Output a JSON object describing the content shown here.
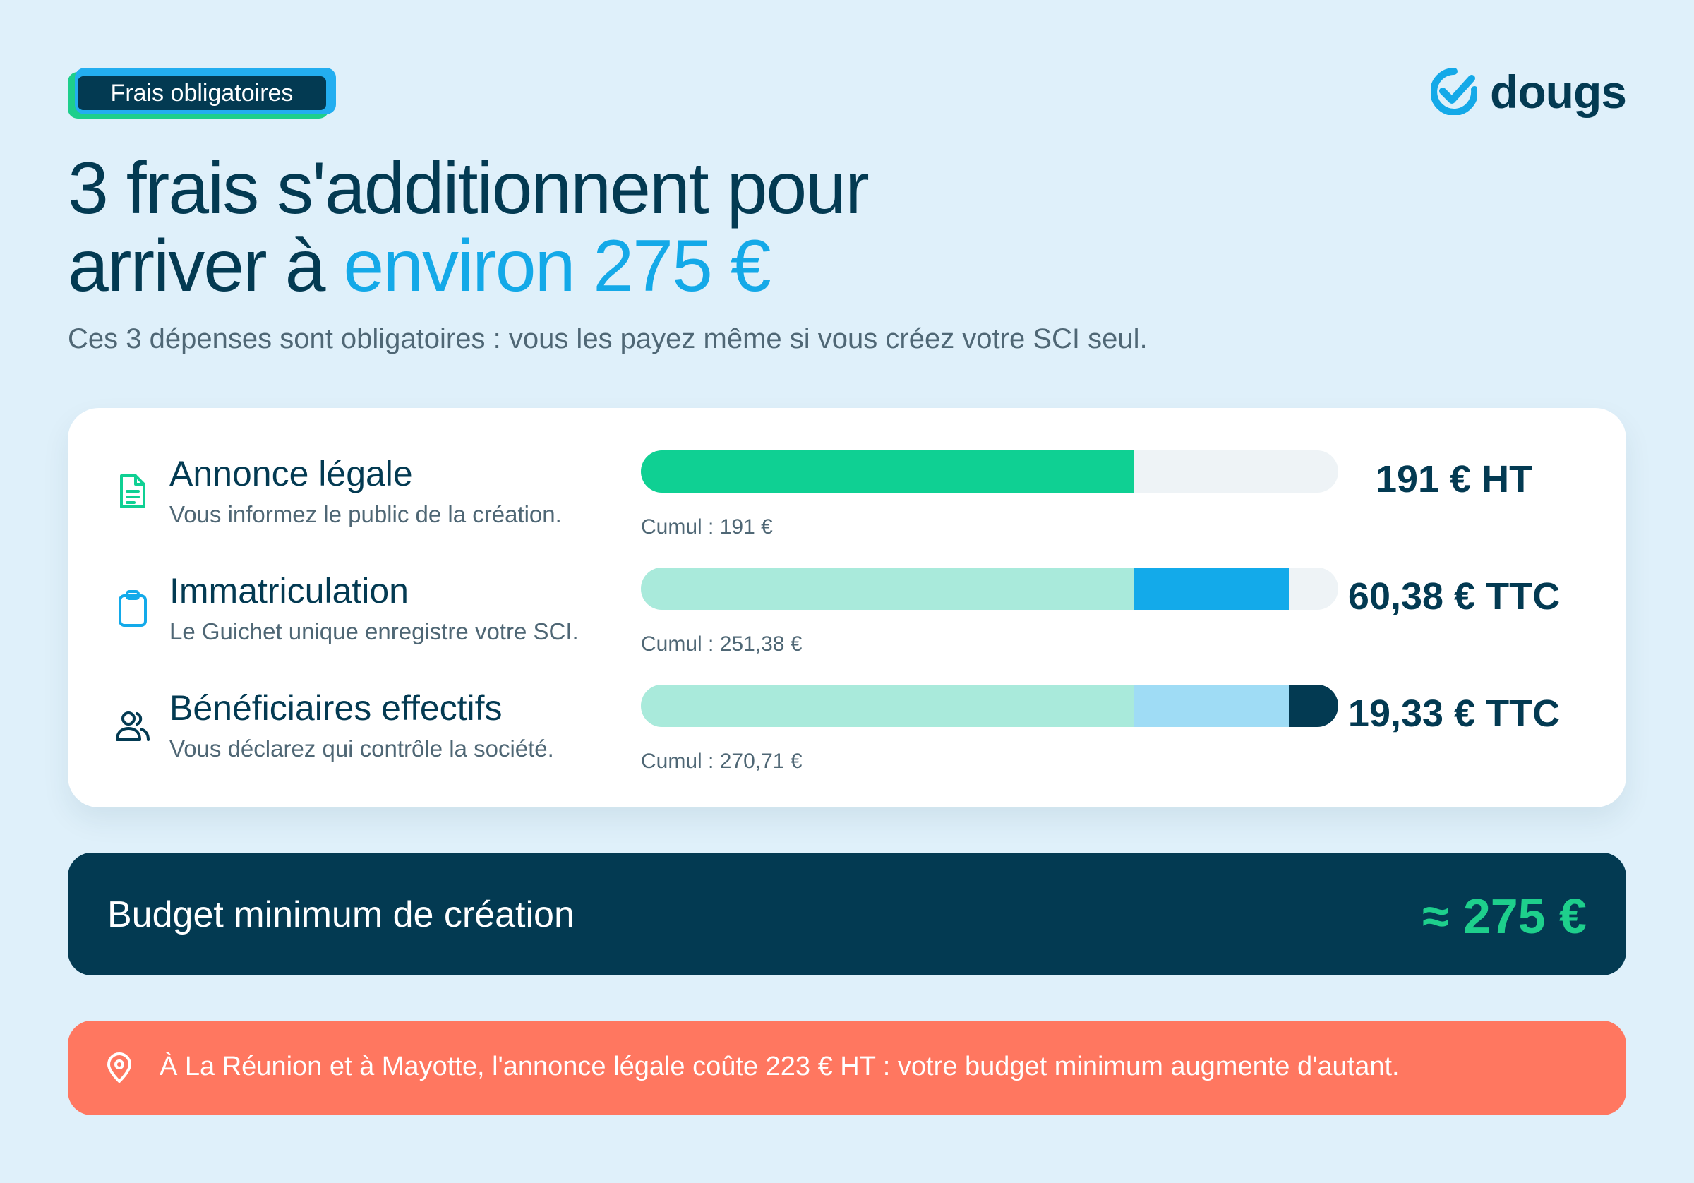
{
  "tag": {
    "label": "Frais obligatoires"
  },
  "brand": {
    "name": "dougs",
    "icon": "check-badge-icon"
  },
  "headline": {
    "line1": "3 frais s'additionnent pour",
    "line2_start": "arriver à ",
    "line2_accent": "environ 275 €"
  },
  "subtitle": "Ces 3 dépenses sont obligatoires : vous les payez même si vous créez votre SCI seul.",
  "fees": [
    {
      "icon": "document-icon",
      "title": "Annonce légale",
      "description": "Vous informez le public de la création.",
      "cumul": "Cumul : 191 €",
      "amount": "191 € HT",
      "cumulative_fraction": 0.706
    },
    {
      "icon": "clipboard-icon",
      "title": "Immatriculation",
      "description": "Le Guichet unique enregistre votre SCI.",
      "cumul": "Cumul : 251,38 €",
      "amount": "60,38 € TTC",
      "cumulative_fraction": 0.929
    },
    {
      "icon": "users-icon",
      "title": "Bénéficiaires effectifs",
      "description": "Vous déclarez qui contrôle la société.",
      "cumul": "Cumul : 270,71 €",
      "amount": "19,33 € TTC",
      "cumulative_fraction": 1.0
    }
  ],
  "budget": {
    "label": "Budget minimum de création",
    "value": "≈ 275 €"
  },
  "notice": {
    "icon": "location-pin-icon",
    "text": "À La Réunion et à Mayotte, l'annonce légale coûte 223 € HT : votre budget minimum augmente d'autant."
  },
  "colors": {
    "green": "#0fd093",
    "green_light": "#a9eadb",
    "blue": "#13aaea",
    "blue_light": "#9fdcf5",
    "navy": "#033a52",
    "coral": "#ff7760"
  }
}
